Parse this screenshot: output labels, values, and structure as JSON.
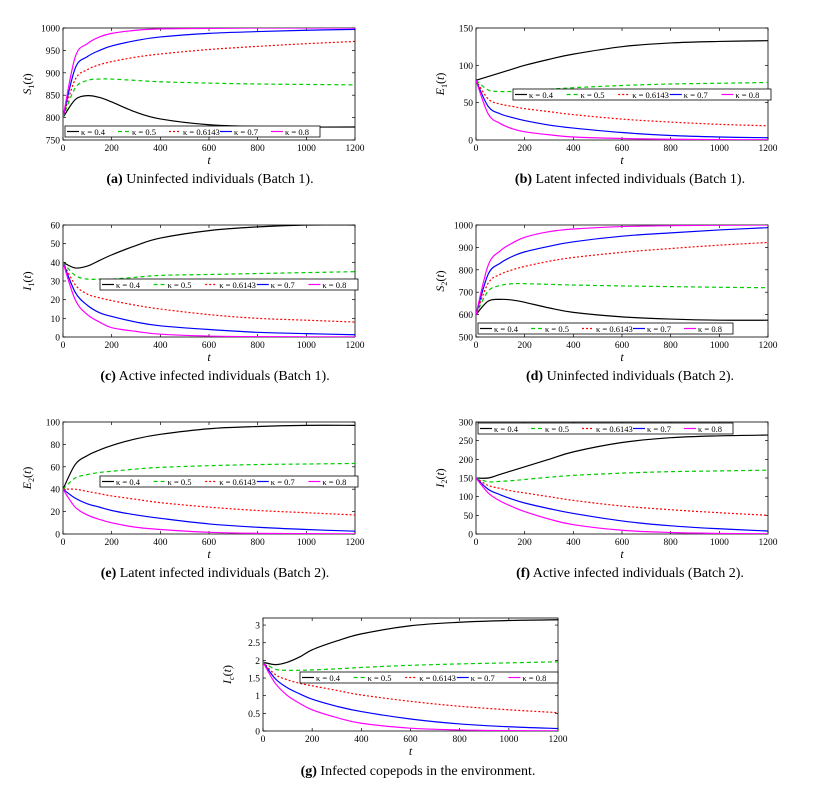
{
  "colors": {
    "k04": "#000000",
    "k05": "#00cc00",
    "k06143": "#ff0000",
    "k07": "#0000ff",
    "k08": "#ff00ff"
  },
  "xlabel": "t",
  "xticks": [
    "0",
    "200",
    "400",
    "600",
    "800",
    "1000",
    "1200"
  ],
  "legend": [
    "κ = 0.4",
    "κ = 0.5",
    "κ = 0.6143",
    "κ = 0.7",
    "κ = 0.8"
  ],
  "panels": [
    {
      "letter": "(a)",
      "caption": "Uninfected individuals (Batch 1).",
      "ylabel": "S1(t)",
      "yticks": [
        "750",
        "800",
        "850",
        "900",
        "950",
        "1000"
      ]
    },
    {
      "letter": "(b)",
      "caption": "Latent infected individuals (Batch 1).",
      "ylabel": "E1(t)",
      "yticks": [
        "0",
        "50",
        "100",
        "150"
      ]
    },
    {
      "letter": "(c)",
      "caption": "Active infected individuals (Batch 1).",
      "ylabel": "I1(t)",
      "yticks": [
        "0",
        "10",
        "20",
        "30",
        "40",
        "50",
        "60"
      ]
    },
    {
      "letter": "(d)",
      "caption": "Uninfected individuals (Batch 2).",
      "ylabel": "S2(t)",
      "yticks": [
        "500",
        "600",
        "700",
        "800",
        "900",
        "1000"
      ]
    },
    {
      "letter": "(e)",
      "caption": "Latent infected individuals (Batch 2).",
      "ylabel": "E2(t)",
      "yticks": [
        "0",
        "20",
        "40",
        "60",
        "80",
        "100"
      ]
    },
    {
      "letter": "(f)",
      "caption": "Active infected individuals (Batch 2).",
      "ylabel": "I2(t)",
      "yticks": [
        "0",
        "50",
        "100",
        "150",
        "200",
        "250",
        "300"
      ]
    },
    {
      "letter": "(g)",
      "caption": "Infected copepods in the environment.",
      "ylabel": "Ic(t)",
      "yticks": [
        "0",
        "0.5",
        "1",
        "1.5",
        "2",
        "2.5",
        "3"
      ]
    }
  ],
  "chart_data": [
    {
      "type": "line",
      "title": "Uninfected individuals (Batch 1)",
      "xlabel": "t",
      "ylabel": "S1(t)",
      "xlim": [
        0,
        1200
      ],
      "ylim": [
        750,
        1000
      ],
      "legend_position": "bottom",
      "x": [
        0,
        50,
        100,
        150,
        200,
        300,
        400,
        600,
        800,
        1000,
        1200
      ],
      "series": [
        {
          "name": "κ = 0.4",
          "values": [
            800,
            840,
            849,
            845,
            835,
            812,
            797,
            784,
            780,
            779,
            779
          ]
        },
        {
          "name": "κ = 0.5",
          "values": [
            800,
            866,
            883,
            886,
            886,
            883,
            880,
            877,
            875,
            874,
            873
          ]
        },
        {
          "name": "κ = 0.6143",
          "values": [
            800,
            885,
            907,
            918,
            925,
            935,
            942,
            952,
            959,
            965,
            970
          ]
        },
        {
          "name": "κ = 0.7",
          "values": [
            800,
            910,
            936,
            950,
            960,
            972,
            980,
            988,
            992,
            995,
            997
          ]
        },
        {
          "name": "κ = 0.8",
          "values": [
            800,
            935,
            965,
            980,
            988,
            995,
            998,
            999,
            1000,
            1000,
            1000
          ]
        }
      ]
    },
    {
      "type": "line",
      "title": "Latent infected individuals (Batch 1)",
      "xlabel": "t",
      "ylabel": "E1(t)",
      "xlim": [
        0,
        1200
      ],
      "ylim": [
        0,
        150
      ],
      "legend_position": "center-right",
      "x": [
        0,
        50,
        100,
        150,
        200,
        300,
        400,
        600,
        800,
        1000,
        1200
      ],
      "series": [
        {
          "name": "κ = 0.4",
          "values": [
            80,
            85,
            90,
            95,
            100,
            108,
            115,
            125,
            130,
            132,
            133
          ]
        },
        {
          "name": "κ = 0.5",
          "values": [
            80,
            67,
            65,
            65,
            66,
            68,
            70,
            73,
            75,
            76,
            77
          ]
        },
        {
          "name": "κ = 0.6143",
          "values": [
            80,
            55,
            48,
            45,
            42,
            38,
            34,
            28,
            24,
            21,
            19
          ]
        },
        {
          "name": "κ = 0.7",
          "values": [
            80,
            45,
            35,
            30,
            26,
            20,
            16,
            10,
            6,
            4,
            3
          ]
        },
        {
          "name": "κ = 0.8",
          "values": [
            80,
            35,
            22,
            15,
            11,
            7,
            4,
            2,
            1,
            0.5,
            0.3
          ]
        }
      ]
    },
    {
      "type": "line",
      "title": "Active infected individuals (Batch 1)",
      "xlabel": "t",
      "ylabel": "I1(t)",
      "xlim": [
        0,
        1200
      ],
      "ylim": [
        0,
        60
      ],
      "legend_position": "center-right",
      "x": [
        0,
        50,
        100,
        150,
        200,
        300,
        400,
        600,
        800,
        1000,
        1200
      ],
      "series": [
        {
          "name": "κ = 0.4",
          "values": [
            40,
            37,
            38,
            41,
            44,
            49,
            53,
            57,
            59,
            60,
            60
          ]
        },
        {
          "name": "κ = 0.5",
          "values": [
            40,
            33,
            31,
            31,
            31,
            32,
            33,
            33.5,
            34,
            34.5,
            35
          ]
        },
        {
          "name": "κ = 0.6143",
          "values": [
            40,
            28,
            23,
            21,
            19.5,
            17,
            15,
            12,
            10,
            9,
            8
          ]
        },
        {
          "name": "κ = 0.7",
          "values": [
            40,
            24,
            17,
            13,
            11,
            8,
            6,
            4,
            2.5,
            1.8,
            1.2
          ]
        },
        {
          "name": "κ = 0.8",
          "values": [
            40,
            20,
            12,
            8,
            5,
            3,
            1.5,
            0.5,
            0.2,
            0.1,
            0.05
          ]
        }
      ]
    },
    {
      "type": "line",
      "title": "Uninfected individuals (Batch 2)",
      "xlabel": "t",
      "ylabel": "S2(t)",
      "xlim": [
        0,
        1200
      ],
      "ylim": [
        500,
        1000
      ],
      "legend_position": "bottom",
      "x": [
        0,
        50,
        100,
        150,
        200,
        300,
        400,
        600,
        800,
        1000,
        1200
      ],
      "series": [
        {
          "name": "κ = 0.4",
          "values": [
            600,
            660,
            668,
            665,
            655,
            630,
            610,
            590,
            580,
            575,
            575
          ]
        },
        {
          "name": "κ = 0.5",
          "values": [
            600,
            705,
            730,
            738,
            738,
            735,
            732,
            728,
            725,
            722,
            720
          ]
        },
        {
          "name": "κ = 0.6143",
          "values": [
            600,
            740,
            780,
            800,
            815,
            838,
            855,
            878,
            895,
            910,
            922
          ]
        },
        {
          "name": "κ = 0.7",
          "values": [
            600,
            780,
            830,
            860,
            880,
            905,
            925,
            950,
            965,
            978,
            988
          ]
        },
        {
          "name": "κ = 0.8",
          "values": [
            600,
            820,
            885,
            920,
            945,
            970,
            982,
            993,
            997,
            999,
            1000
          ]
        }
      ]
    },
    {
      "type": "line",
      "title": "Latent infected individuals (Batch 2)",
      "xlabel": "t",
      "ylabel": "E2(t)",
      "xlim": [
        0,
        1200
      ],
      "ylim": [
        0,
        100
      ],
      "legend_position": "center-right",
      "x": [
        0,
        50,
        100,
        150,
        200,
        300,
        400,
        600,
        800,
        1000,
        1200
      ],
      "series": [
        {
          "name": "κ = 0.4",
          "values": [
            40,
            62,
            70,
            75,
            79,
            85,
            89,
            94,
            96,
            97,
            97
          ]
        },
        {
          "name": "κ = 0.5",
          "values": [
            40,
            50,
            53,
            55,
            56,
            58,
            59.5,
            61,
            62,
            62.5,
            63
          ]
        },
        {
          "name": "κ = 0.6143",
          "values": [
            40,
            40,
            38,
            36,
            34,
            31,
            28,
            24,
            21,
            19,
            17
          ]
        },
        {
          "name": "κ = 0.7",
          "values": [
            40,
            32,
            27,
            24,
            21,
            17,
            14,
            9,
            6,
            4,
            2.5
          ]
        },
        {
          "name": "κ = 0.8",
          "values": [
            40,
            24,
            17,
            13,
            10,
            6,
            4,
            1.5,
            0.6,
            0.3,
            0.1
          ]
        }
      ]
    },
    {
      "type": "line",
      "title": "Active infected individuals (Batch 2)",
      "xlabel": "t",
      "ylabel": "I2(t)",
      "xlim": [
        0,
        1200
      ],
      "ylim": [
        0,
        300
      ],
      "legend_position": "top",
      "x": [
        0,
        50,
        100,
        150,
        200,
        300,
        400,
        600,
        800,
        1000,
        1200
      ],
      "series": [
        {
          "name": "κ = 0.4",
          "values": [
            150,
            150,
            160,
            170,
            180,
            200,
            220,
            245,
            258,
            263,
            265
          ]
        },
        {
          "name": "κ = 0.5",
          "values": [
            150,
            140,
            141,
            143,
            146,
            152,
            157,
            163,
            167,
            169,
            171
          ]
        },
        {
          "name": "κ = 0.6143",
          "values": [
            150,
            130,
            122,
            115,
            110,
            100,
            90,
            75,
            65,
            57,
            50
          ]
        },
        {
          "name": "κ = 0.7",
          "values": [
            150,
            120,
            105,
            93,
            83,
            68,
            55,
            35,
            22,
            14,
            8
          ]
        },
        {
          "name": "κ = 0.8",
          "values": [
            150,
            110,
            88,
            73,
            60,
            40,
            25,
            10,
            4,
            1.5,
            0.5
          ]
        }
      ]
    },
    {
      "type": "line",
      "title": "Infected copepods in the environment",
      "xlabel": "t",
      "ylabel": "Ic(t)",
      "xlim": [
        0,
        1200
      ],
      "ylim": [
        0,
        3.2
      ],
      "legend_position": "center-right",
      "x": [
        0,
        50,
        100,
        150,
        200,
        300,
        400,
        600,
        800,
        1000,
        1200
      ],
      "series": [
        {
          "name": "κ = 0.4",
          "values": [
            1.95,
            1.88,
            1.95,
            2.1,
            2.3,
            2.55,
            2.75,
            2.98,
            3.08,
            3.13,
            3.15
          ]
        },
        {
          "name": "κ = 0.5",
          "values": [
            1.95,
            1.75,
            1.72,
            1.72,
            1.73,
            1.76,
            1.8,
            1.86,
            1.9,
            1.93,
            1.96
          ]
        },
        {
          "name": "κ = 0.6143",
          "values": [
            1.95,
            1.6,
            1.45,
            1.35,
            1.28,
            1.15,
            1.02,
            0.84,
            0.7,
            0.6,
            0.52
          ]
        },
        {
          "name": "κ = 0.7",
          "values": [
            1.95,
            1.48,
            1.22,
            1.05,
            0.9,
            0.7,
            0.55,
            0.34,
            0.2,
            0.12,
            0.07
          ]
        },
        {
          "name": "κ = 0.8",
          "values": [
            1.95,
            1.35,
            1.0,
            0.78,
            0.6,
            0.38,
            0.22,
            0.08,
            0.03,
            0.01,
            0.005
          ]
        }
      ]
    }
  ]
}
